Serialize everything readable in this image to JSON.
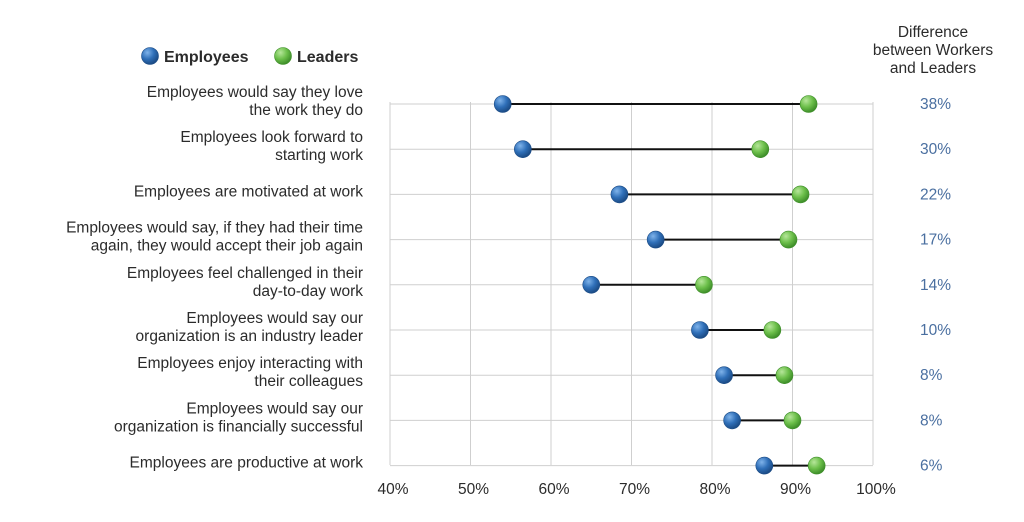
{
  "chart_data": {
    "type": "dumbbell",
    "legend": {
      "placement": "top-left",
      "entries": [
        {
          "name": "Employees",
          "color": "#2f6fb8"
        },
        {
          "name": "Leaders",
          "color": "#6cbf4a"
        }
      ]
    },
    "difference_header": [
      "Difference",
      "between Workers",
      "and Leaders"
    ],
    "xlim": [
      40,
      100
    ],
    "x_ticks": [
      "40%",
      "50%",
      "60%",
      "70%",
      "80%",
      "90%",
      "100%"
    ],
    "x_tick_values": [
      40,
      50,
      60,
      70,
      80,
      90,
      100
    ],
    "grid": true,
    "categories": [
      {
        "label": [
          "Employees would say they love",
          "the work they do"
        ],
        "employees": 54,
        "leaders": 92,
        "difference": "38%"
      },
      {
        "label": [
          "Employees look forward to",
          "starting work"
        ],
        "employees": 56.5,
        "leaders": 86,
        "difference": "30%"
      },
      {
        "label": [
          "Employees are motivated at work"
        ],
        "employees": 68.5,
        "leaders": 91,
        "difference": "22%"
      },
      {
        "label": [
          "Employees would say, if they had their time",
          "again, they would accept their job again"
        ],
        "employees": 73,
        "leaders": 89.5,
        "difference": "17%"
      },
      {
        "label": [
          "Employees feel challenged in their",
          "day-to-day work"
        ],
        "employees": 65,
        "leaders": 79,
        "difference": "14%"
      },
      {
        "label": [
          "Employees would say our",
          "organization is an industry leader"
        ],
        "employees": 78.5,
        "leaders": 87.5,
        "difference": "10%"
      },
      {
        "label": [
          "Employees enjoy interacting with",
          "their colleagues"
        ],
        "employees": 81.5,
        "leaders": 89,
        "difference": "8%"
      },
      {
        "label": [
          "Employees would say our",
          "organization is financially successful"
        ],
        "employees": 82.5,
        "leaders": 90,
        "difference": "8%"
      },
      {
        "label": [
          "Employees are productive at work"
        ],
        "employees": 86.5,
        "leaders": 93,
        "difference": "6%"
      }
    ]
  }
}
